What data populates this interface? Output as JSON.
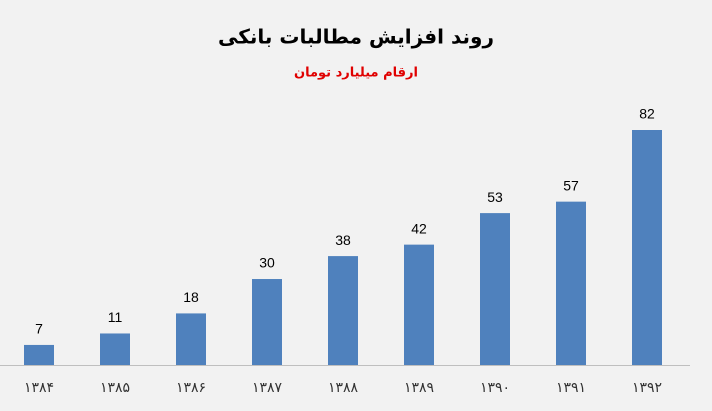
{
  "chart_data": {
    "type": "bar",
    "title": "روند افزایش مطالبات بانکی",
    "subtitle": "ارقام میلیارد تومان",
    "categories": [
      "۱۳۸۴",
      "۱۳۸۵",
      "۱۳۸۶",
      "۱۳۸۷",
      "۱۳۸۸",
      "۱۳۸۹",
      "۱۳۹۰",
      "۱۳۹۱",
      "۱۳۹۲"
    ],
    "values": [
      7,
      11,
      18,
      30,
      38,
      42,
      53,
      57,
      82
    ],
    "color": "#4f81bd"
  }
}
